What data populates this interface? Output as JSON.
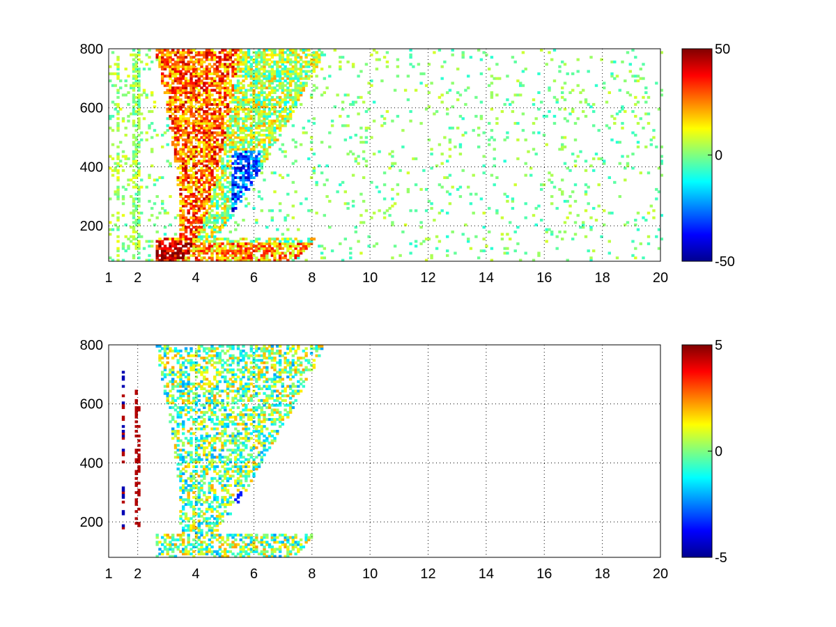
{
  "chart_data": [
    {
      "type": "heatmap",
      "title": "",
      "xlabel": "",
      "ylabel": "",
      "xlim": [
        1,
        20
      ],
      "ylim": [
        80,
        800
      ],
      "x_ticks": [
        "1",
        "2",
        "4",
        "6",
        "8",
        "10",
        "12",
        "14",
        "16",
        "18",
        "20"
      ],
      "x_tick_values": [
        1,
        2,
        4,
        6,
        8,
        10,
        12,
        14,
        16,
        18,
        20
      ],
      "y_ticks": [
        "200",
        "400",
        "600",
        "800"
      ],
      "y_tick_values": [
        200,
        400,
        600,
        800
      ],
      "grid": "dotted",
      "colormap": "jet",
      "colorbar": {
        "min": -50,
        "max": 50,
        "ticks": [
          "50",
          "0",
          "-50"
        ],
        "tick_values": [
          50,
          0,
          -50
        ]
      },
      "data_description": "sparse cells; dense band x 3-8 (triangular, centered near x 5) with strong positive values, negative pocket near x 5.5 y 250-400, sparse near-zero cells across x 9-20"
    },
    {
      "type": "heatmap",
      "title": "",
      "xlabel": "",
      "ylabel": "",
      "xlim": [
        1,
        20
      ],
      "ylim": [
        80,
        800
      ],
      "x_ticks": [
        "1",
        "2",
        "4",
        "6",
        "8",
        "10",
        "12",
        "14",
        "16",
        "18",
        "20"
      ],
      "x_tick_values": [
        1,
        2,
        4,
        6,
        8,
        10,
        12,
        14,
        16,
        18,
        20
      ],
      "y_ticks": [
        "200",
        "400",
        "600",
        "800"
      ],
      "y_tick_values": [
        200,
        400,
        600,
        800
      ],
      "grid": "dotted",
      "colormap": "jet",
      "colorbar": {
        "min": -5,
        "max": 5,
        "ticks": [
          "5",
          "0",
          "-5"
        ],
        "tick_values": [
          5,
          0,
          -5
        ]
      },
      "data_description": "cells only in x 3-9 triangular region plus thin streaks near x 1.5 and 2; empty for x > 9"
    }
  ]
}
